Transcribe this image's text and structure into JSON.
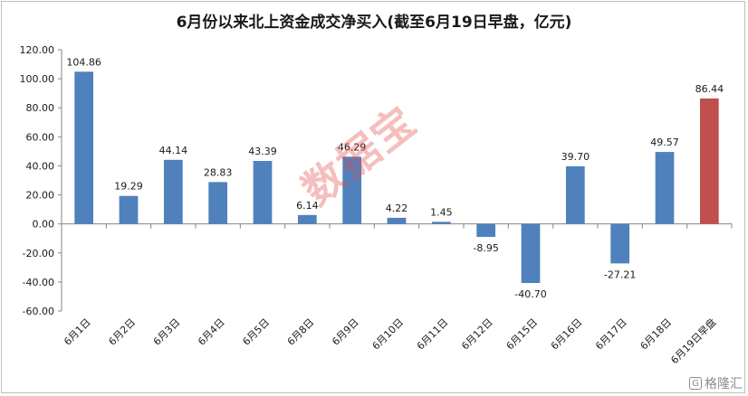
{
  "chart_data": {
    "type": "bar",
    "title": "6月份以来北上资金成交净买入(截至6月19日早盘，亿元)",
    "xlabel": "",
    "ylabel": "",
    "ylim": [
      -60,
      120
    ],
    "yticks": [
      "-60.00",
      "-40.00",
      "-20.00",
      "0.00",
      "20.00",
      "40.00",
      "60.00",
      "80.00",
      "100.00",
      "120.00"
    ],
    "grid": false,
    "legend": "none",
    "categories": [
      "6月1日",
      "6月2日",
      "6月3日",
      "6月4日",
      "6月5日",
      "6月8日",
      "6月9日",
      "6月10日",
      "6月11日",
      "6月12日",
      "6月15日",
      "6月16日",
      "6月17日",
      "6月18日",
      "6月19日早盘"
    ],
    "values": [
      104.86,
      19.29,
      44.14,
      28.83,
      43.39,
      6.14,
      46.29,
      4.22,
      1.45,
      -8.95,
      -40.7,
      39.7,
      -27.21,
      49.57,
      86.44
    ],
    "value_labels": [
      "104.86",
      "19.29",
      "44.14",
      "28.83",
      "43.39",
      "6.14",
      "46.29",
      "4.22",
      "1.45",
      "-8.95",
      "-40.70",
      "39.70",
      "-27.21",
      "49.57",
      "86.44"
    ],
    "colors": {
      "bar": "#4f81bd",
      "highlight_bar": "#c0504d",
      "axis": "#868686",
      "text": "#1a1a1a"
    },
    "highlight_index": 14
  },
  "watermark": "数据宝",
  "brand": {
    "icon": "gelonghui-logo-icon",
    "mark": "G",
    "text": "格隆汇"
  }
}
